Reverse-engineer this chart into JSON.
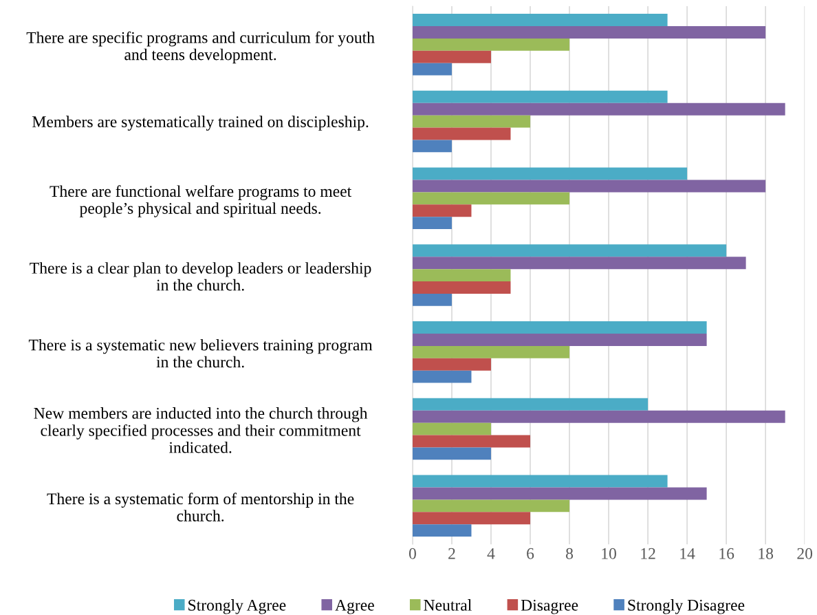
{
  "chart_data": {
    "type": "bar",
    "orientation": "horizontal",
    "categories": [
      "There are specific programs and curriculum for youth\nand teens development.",
      "Members are systematically trained on discipleship.",
      "There are functional welfare programs to meet\npeople’s physical and spiritual needs.",
      "There is a clear plan to develop leaders or leadership\nin the church.",
      "There is a systematic new believers training program\nin the church.",
      "New members are inducted into the church through\nclearly specified processes and their commitment\nindicated.",
      "There is a systematic form of mentorship in the\nchurch."
    ],
    "series": [
      {
        "name": "Strongly Agree",
        "color": "#4bacc6",
        "values": [
          13,
          13,
          14,
          16,
          15,
          12,
          13
        ]
      },
      {
        "name": "Agree",
        "color": "#8064a2",
        "values": [
          18,
          19,
          18,
          17,
          15,
          19,
          15
        ]
      },
      {
        "name": "Neutral",
        "color": "#9bbb59",
        "values": [
          8,
          6,
          8,
          5,
          8,
          4,
          8
        ]
      },
      {
        "name": "Disagree",
        "color": "#c0504d",
        "values": [
          4,
          5,
          3,
          5,
          4,
          6,
          6
        ]
      },
      {
        "name": "Strongly Disagree",
        "color": "#4f81bd",
        "values": [
          2,
          2,
          2,
          2,
          3,
          4,
          3
        ]
      }
    ],
    "xlim": [
      0,
      20
    ],
    "xticks": [
      0,
      2,
      4,
      6,
      8,
      10,
      12,
      14,
      16,
      18,
      20
    ],
    "grid": "x",
    "legend": "bottom"
  }
}
